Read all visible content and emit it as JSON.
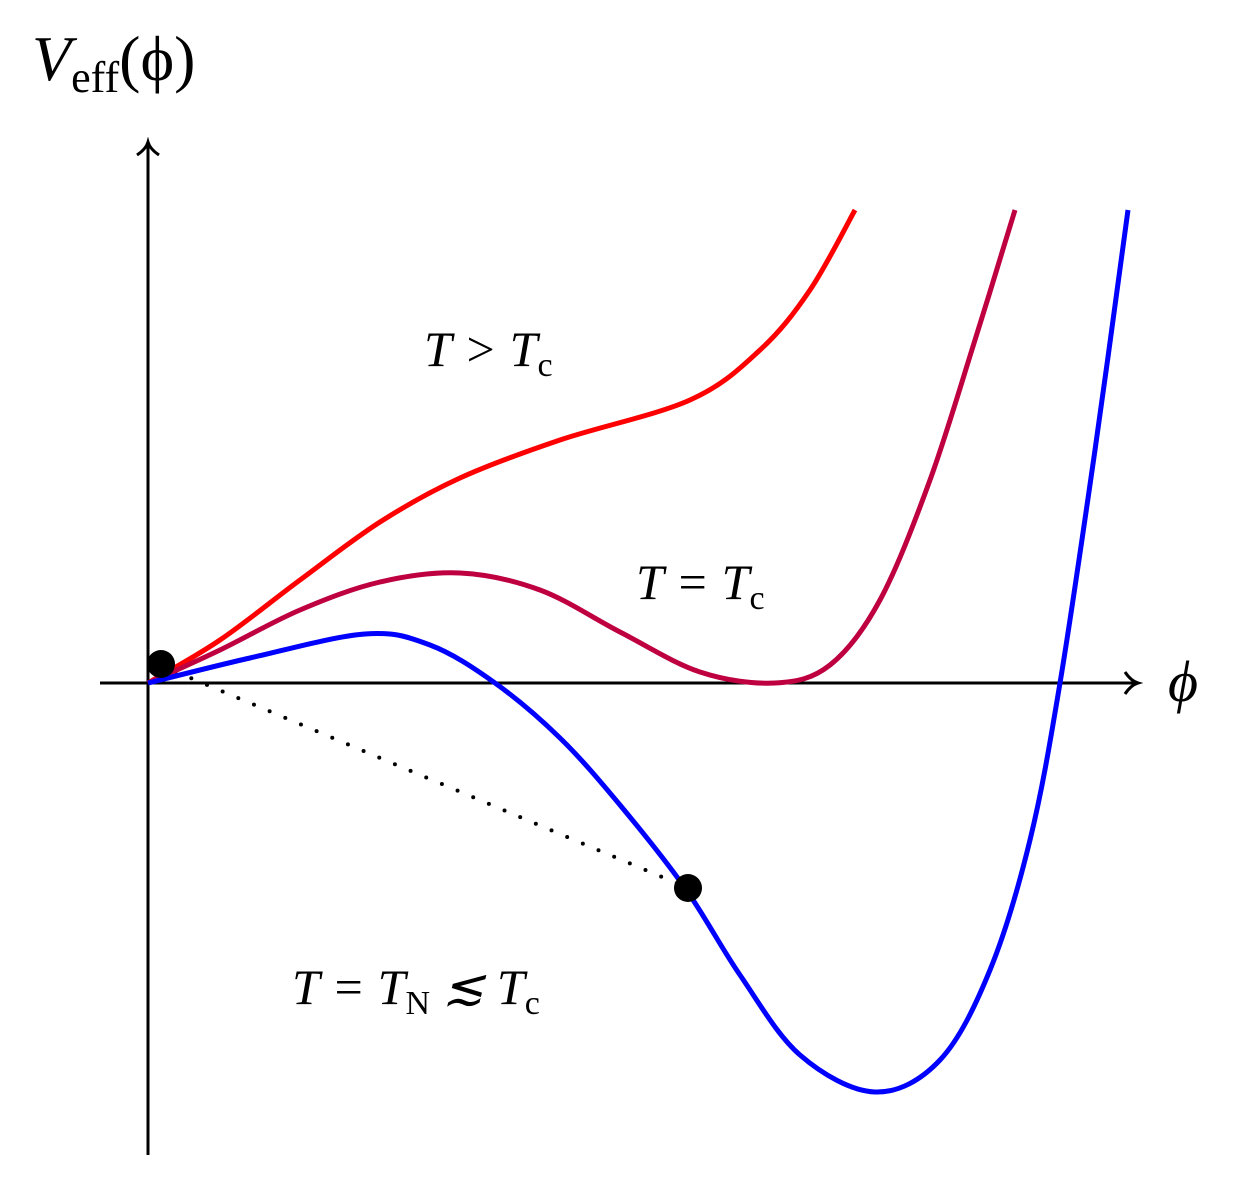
{
  "y_axis_label": {
    "main": "V",
    "sub": "eff",
    "arg": "(ϕ)"
  },
  "x_axis_label": "ϕ",
  "curves": [
    {
      "label": {
        "a": "T > T",
        "sub": "c"
      },
      "color": "#ff0000"
    },
    {
      "label": {
        "a": "T = T",
        "sub": "c"
      },
      "color": "#bf0040"
    },
    {
      "label": {
        "a": "T = T",
        "sub1": "N",
        "b": " ≲ T",
        "sub2": "c"
      },
      "color": "#0000ff"
    }
  ]
}
